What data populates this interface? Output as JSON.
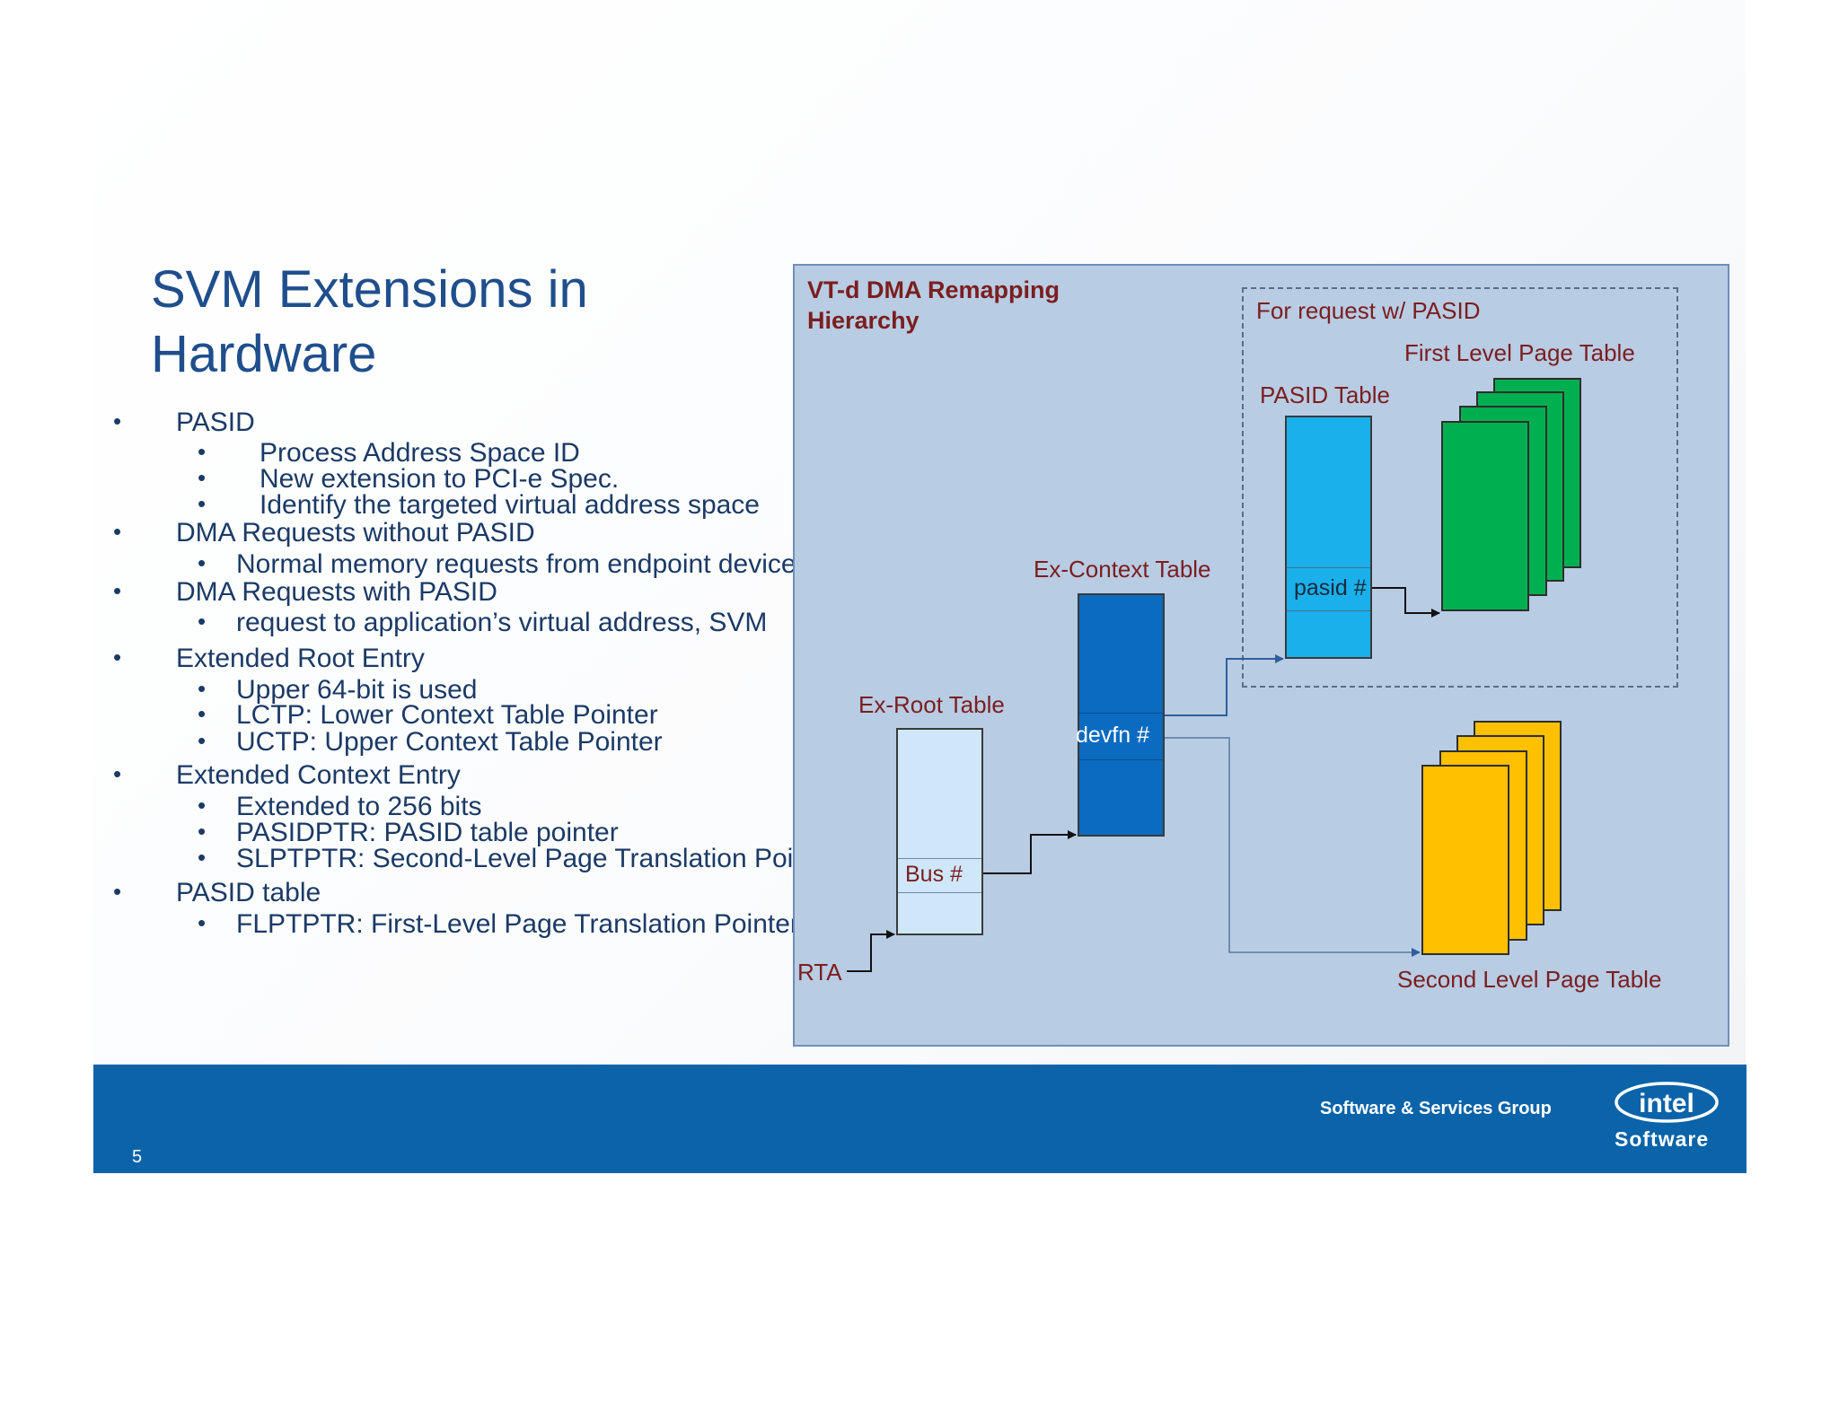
{
  "slide": {
    "title": "SVM Extensions in Hardware",
    "page_number": "5"
  },
  "bullets": [
    {
      "text": "PASID",
      "subs": [
        "Process Address Space ID",
        "New extension to PCI-e Spec.",
        "Identify the targeted virtual address space"
      ]
    },
    {
      "text": "DMA Requests without PASID",
      "subs": [
        "Normal memory requests from endpoint devices"
      ]
    },
    {
      "text": "DMA Requests with PASID",
      "subs": [
        "request to application’s virtual address, SVM"
      ]
    },
    {
      "text": "Extended Root Entry",
      "subs": [
        "Upper 64-bit is used",
        "LCTP: Lower Context Table Pointer",
        "UCTP: Upper Context Table Pointer"
      ]
    },
    {
      "text": "Extended Context Entry",
      "subs": [
        "Extended to 256 bits",
        "PASIDPTR: PASID table pointer",
        "SLPTPTR: Second-Level Page Translation Pointer"
      ]
    },
    {
      "text": "PASID table",
      "subs": [
        "FLPTPTR: First-Level Page Translation Pointer"
      ]
    }
  ],
  "diagram": {
    "title": "VT-d DMA Remapping Hierarchy",
    "pasid_region_label": "For request w/ PASID",
    "first_level_label": "First Level Page Table",
    "pasid_table_label": "PASID Table",
    "pasid_entry": "pasid #",
    "ex_context_label": "Ex-Context Table",
    "devfn_entry": "devfn #",
    "ex_root_label": "Ex-Root Table",
    "bus_entry": "Bus #",
    "rta_label": "RTA",
    "second_level_label": "Second Level Page Table",
    "colors": {
      "panel": "#b8cce4",
      "ex_root": "#cfe7fb",
      "ex_context": "#0a6bc1",
      "pasid_table": "#1ab0ec",
      "first_level": "#00b050",
      "second_level": "#ffc000",
      "label": "#7b1e1e",
      "title_text": "#1f4e8c",
      "footer": "#0b63a9"
    }
  },
  "footer": {
    "group": "Software & Services Group",
    "logo_text": "intel",
    "logo_sub": "Software"
  }
}
